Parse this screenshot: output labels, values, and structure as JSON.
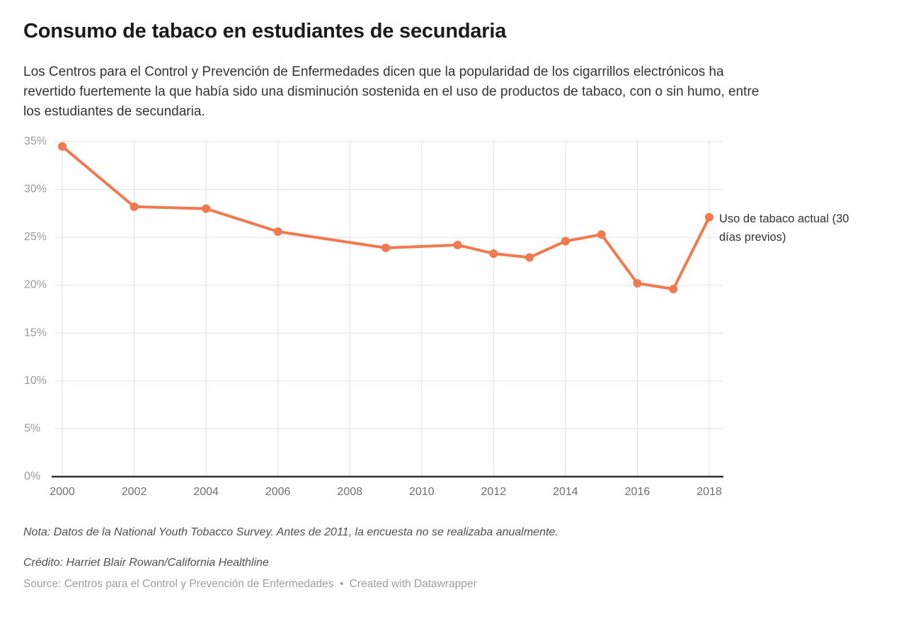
{
  "header": {
    "title": "Consumo de tabaco en estudiantes de secundaria",
    "description_lines": [
      "Los Centros para el Control y Prevención de Enfermedades dicen que la popularidad de los cigarrillos electrónicos ha",
      "revertido fuertemente la que había sido una disminución sostenida en el uso de productos de tabaco, con o sin humo, entre",
      "los estudiantes de secundaria."
    ]
  },
  "chart_data": {
    "type": "line",
    "title": "Consumo de tabaco en estudiantes de secundaria",
    "x": [
      2000,
      2002,
      2004,
      2006,
      2009,
      2011,
      2012,
      2013,
      2014,
      2015,
      2016,
      2017,
      2018
    ],
    "series": [
      {
        "name": "Uso de tabaco actual (30 días previos)",
        "values": [
          34.5,
          28.2,
          28.0,
          25.6,
          23.9,
          24.2,
          23.3,
          22.9,
          24.6,
          25.3,
          20.2,
          19.6,
          27.1
        ]
      }
    ],
    "xlim": [
      2000,
      2018
    ],
    "ylim": [
      0,
      35
    ],
    "x_ticks": [
      {
        "value": 2000,
        "label": "2000"
      },
      {
        "value": 2002,
        "label": "2002"
      },
      {
        "value": 2004,
        "label": "2004"
      },
      {
        "value": 2006,
        "label": "2006"
      },
      {
        "value": 2008,
        "label": "2008"
      },
      {
        "value": 2010,
        "label": "2010"
      },
      {
        "value": 2012,
        "label": "2012"
      },
      {
        "value": 2014,
        "label": "2014"
      },
      {
        "value": 2016,
        "label": "2016"
      },
      {
        "value": 2018,
        "label": "2018"
      }
    ],
    "y_ticks": [
      {
        "value": 0,
        "label": "0%"
      },
      {
        "value": 5,
        "label": "5%"
      },
      {
        "value": 10,
        "label": "10%"
      },
      {
        "value": 15,
        "label": "15%"
      },
      {
        "value": 20,
        "label": "20%"
      },
      {
        "value": 25,
        "label": "25%"
      },
      {
        "value": 30,
        "label": "30%"
      },
      {
        "value": 35,
        "label": "35%"
      }
    ],
    "grid": "on",
    "legend_position": "annotation-right-of-last-point",
    "colors": {
      "line": "#F0794E",
      "marker": "#F0794E",
      "grid": "#E1E1E1",
      "baseline": "#2F2F2F",
      "y_tick_label": "#9B9B9B",
      "x_tick_label": "#6E6E6E",
      "annotation_text": "#333333"
    }
  },
  "footer": {
    "note": "Nota: Datos de la National Youth Tobacco Survey. Antes de 2011, la encuesta no se realizaba anualmente.",
    "credit": "Crédito: Harriet Blair Rowan/California Healthline",
    "source_text": "Source: Centros para el Control y Prevención de Enfermedades",
    "separator": "•",
    "datawrapper_credit": "Created with Datawrapper"
  }
}
